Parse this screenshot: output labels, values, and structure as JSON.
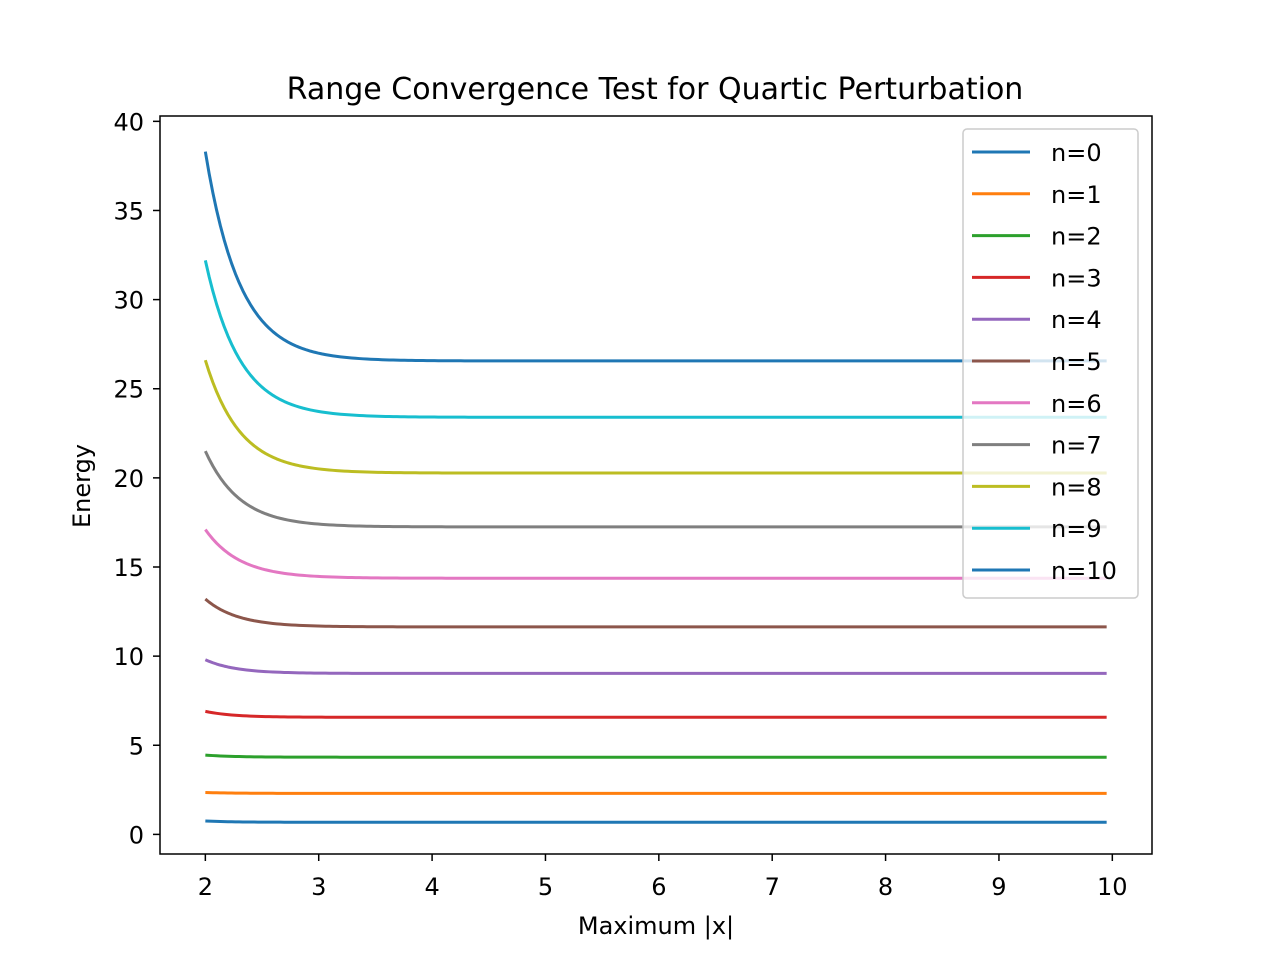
{
  "chart_data": {
    "type": "line",
    "title": "Range Convergence Test for Quartic Perturbation",
    "xlabel": "Maximum |x|",
    "ylabel": "Energy",
    "xlim": [
      1.6,
      10.35
    ],
    "ylim": [
      -1.1,
      40.3
    ],
    "xticks": [
      2,
      3,
      4,
      5,
      6,
      7,
      8,
      9,
      10
    ],
    "yticks": [
      0,
      5,
      10,
      15,
      20,
      25,
      30,
      35,
      40
    ],
    "x_range": [
      2.0,
      9.95
    ],
    "grid": false,
    "legend_position": "upper right",
    "series": [
      {
        "name": "n=0",
        "color": "#1f77b4",
        "start": 0.75,
        "converged": 0.68,
        "decay": 4.0
      },
      {
        "name": "n=1",
        "color": "#ff7f0e",
        "start": 2.35,
        "converged": 2.3,
        "decay": 4.0
      },
      {
        "name": "n=2",
        "color": "#2ca02c",
        "start": 4.45,
        "converged": 4.33,
        "decay": 4.0
      },
      {
        "name": "n=3",
        "color": "#d62728",
        "start": 6.9,
        "converged": 6.57,
        "decay": 4.0
      },
      {
        "name": "n=4",
        "color": "#9467bd",
        "start": 9.8,
        "converged": 9.03,
        "decay": 3.8
      },
      {
        "name": "n=5",
        "color": "#8c564b",
        "start": 13.2,
        "converged": 11.64,
        "decay": 3.5
      },
      {
        "name": "n=6",
        "color": "#e377c2",
        "start": 17.1,
        "converged": 14.37,
        "decay": 3.3
      },
      {
        "name": "n=7",
        "color": "#7f7f7f",
        "start": 21.5,
        "converged": 17.25,
        "decay": 3.3
      },
      {
        "name": "n=8",
        "color": "#bcbd22",
        "start": 26.6,
        "converged": 20.27,
        "decay": 3.3
      },
      {
        "name": "n=9",
        "color": "#17becf",
        "start": 32.2,
        "converged": 23.4,
        "decay": 3.3
      },
      {
        "name": "n=10",
        "color": "#1f77b4",
        "start": 38.3,
        "converged": 26.56,
        "decay": 3.3
      }
    ]
  }
}
